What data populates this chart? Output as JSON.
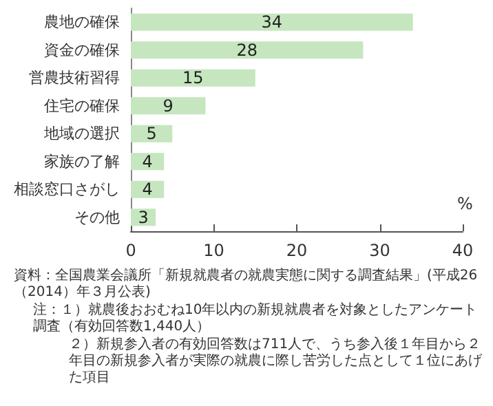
{
  "chart_data": {
    "type": "bar",
    "orientation": "horizontal",
    "categories": [
      "農地の確保",
      "資金の確保",
      "営農技術習得",
      "住宅の確保",
      "地域の選択",
      "家族の了解",
      "相談窓口さがし",
      "その他"
    ],
    "values": [
      34,
      28,
      15,
      9,
      5,
      4,
      4,
      3
    ],
    "color": "#c5e6bf",
    "data_labels": true,
    "xlabel": "%",
    "xlim": [
      0,
      40
    ],
    "xticks": [
      0,
      10,
      20,
      30,
      40
    ],
    "grid": false,
    "annotations": [
      "資料：全国農業会議所「新規就農者の就農実態に関する調査結果」(平成26（2014）年３月公表)",
      "注：１）就農後おおむね10年以内の新規就農者を対象としたアンケート調査（有効回答数1,440人）",
      "２）新規参入者の有効回答数は711人で、うち参入後１年目から２年目の新規参入者が実際の就農に際し苦労した点として１位にあげた項目"
    ]
  }
}
